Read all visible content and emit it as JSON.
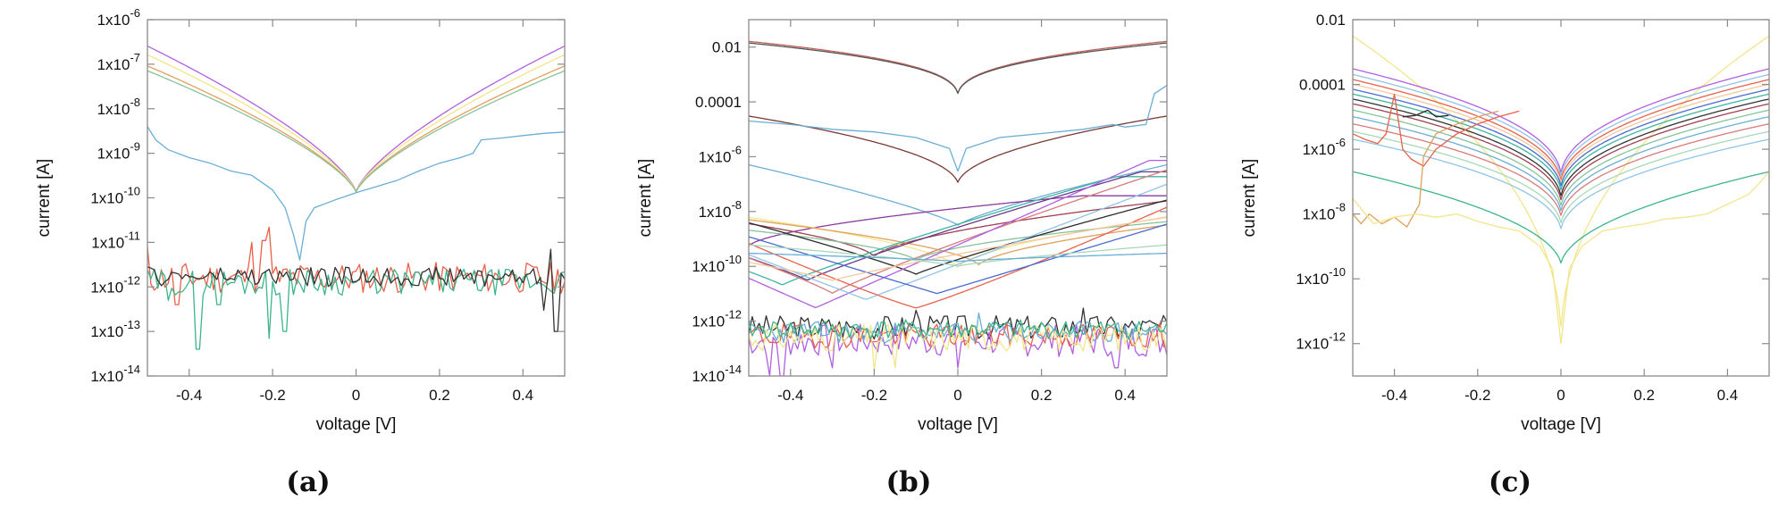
{
  "chart_data": [
    {
      "type": "line",
      "panel_label": "(a)",
      "xlabel": "voltage [V]",
      "ylabel": "current [A]",
      "xlim": [
        -0.5,
        0.5
      ],
      "ylim": [
        1e-14,
        1e-06
      ],
      "yscale": "log",
      "xticks": [
        -0.4,
        -0.2,
        0,
        0.2,
        0.4
      ],
      "xtick_labels": [
        "-0.4",
        "-0.2",
        "0",
        "0.2",
        "0.4"
      ],
      "yticks": [
        1e-14,
        1e-13,
        1e-12,
        1e-11,
        1e-10,
        1e-09,
        1e-08,
        1e-07,
        1e-06
      ],
      "ytick_labels": [
        {
          "base": "1x10",
          "exp": "-14"
        },
        {
          "base": "1x10",
          "exp": "-13"
        },
        {
          "base": "1x10",
          "exp": "-12"
        },
        {
          "base": "1x10",
          "exp": "-11"
        },
        {
          "base": "1x10",
          "exp": "-10"
        },
        {
          "base": "1x10",
          "exp": "-9"
        },
        {
          "base": "1x10",
          "exp": "-8"
        },
        {
          "base": "1x10",
          "exp": "-7"
        },
        {
          "base": "1x10",
          "exp": "-6"
        }
      ],
      "grid": false,
      "legend": "none",
      "series": [
        {
          "color": "#b05fe0",
          "kind": "v",
          "edge": 2.5e-07,
          "min": 1.2e-10,
          "p": 0.7
        },
        {
          "color": "#f2e58a",
          "kind": "v",
          "edge": 1.6e-07,
          "min": 1.2e-10,
          "p": 0.7
        },
        {
          "color": "#e0a05a",
          "kind": "v",
          "edge": 9e-08,
          "min": 1.2e-10,
          "p": 0.7
        },
        {
          "color": "#88c39a",
          "kind": "v",
          "edge": 7e-08,
          "min": 1.2e-10,
          "p": 0.7
        },
        {
          "color": "#6aaed6",
          "kind": "points",
          "x": [
            -0.5,
            -0.48,
            -0.45,
            -0.4,
            -0.35,
            -0.3,
            -0.25,
            -0.2,
            -0.17,
            -0.15,
            -0.135,
            -0.12,
            -0.1,
            -0.05,
            0,
            0.05,
            0.1,
            0.15,
            0.2,
            0.25,
            0.28,
            0.3,
            0.35,
            0.4,
            0.45,
            0.5
          ],
          "y": [
            4e-09,
            2e-09,
            1.2e-09,
            8e-10,
            6e-10,
            4e-10,
            3.2e-10,
            1.5e-10,
            6e-11,
            1.5e-11,
            4e-12,
            3e-11,
            6e-11,
            9e-11,
            1.3e-10,
            1.8e-10,
            2.5e-10,
            4e-10,
            6e-10,
            8e-10,
            1e-09,
            2e-09,
            2.2e-09,
            2.5e-09,
            2.8e-09,
            3e-09
          ]
        },
        {
          "color": "#e8604a",
          "kind": "noise",
          "level": 1.6e-12,
          "amp": 0.35,
          "seed": 11,
          "spikes": [
            [
              -0.5,
              8e-12
            ],
            [
              -0.25,
              1e-11
            ],
            [
              -0.22,
              1.1e-11
            ],
            [
              -0.43,
              4e-13
            ],
            [
              -0.21,
              2.2e-11
            ]
          ]
        },
        {
          "color": "#3bb58a",
          "kind": "noise",
          "level": 1.3e-12,
          "amp": 0.3,
          "seed": 29,
          "spikes": [
            [
              -0.38,
              4e-14
            ],
            [
              -0.21,
              7e-14
            ],
            [
              -0.17,
              1e-13
            ],
            [
              -0.45,
              5e-13
            ],
            [
              -0.33,
              4e-13
            ]
          ]
        },
        {
          "color": "#333333",
          "kind": "noise",
          "level": 1.7e-12,
          "amp": 0.22,
          "seed": 47,
          "spikes": [
            [
              0.47,
              7e-12
            ],
            [
              0.48,
              1e-13
            ],
            [
              0.45,
              3e-13
            ]
          ]
        }
      ]
    },
    {
      "type": "line",
      "panel_label": "(b)",
      "xlabel": "voltage [V]",
      "ylabel": "current [A]",
      "xlim": [
        -0.5,
        0.5
      ],
      "ylim": [
        1e-14,
        0.1
      ],
      "yscale": "log",
      "xticks": [
        -0.4,
        -0.2,
        0,
        0.2,
        0.4
      ],
      "xtick_labels": [
        "-0.4",
        "-0.2",
        "0",
        "0.2",
        "0.4"
      ],
      "yticks": [
        1e-14,
        1e-12,
        1e-10,
        1e-08,
        1e-06,
        0.0001,
        0.01
      ],
      "ytick_labels": [
        {
          "base": "1x10",
          "exp": "-14"
        },
        {
          "base": "1x10",
          "exp": "-12"
        },
        {
          "base": "1x10",
          "exp": "-10"
        },
        {
          "base": "1x10",
          "exp": "-8"
        },
        {
          "base": "1x10",
          "exp": "-6"
        },
        {
          "base": "0.0001",
          "exp": ""
        },
        {
          "base": "0.01",
          "exp": ""
        }
      ],
      "grid": false,
      "legend": "none",
      "series": [
        {
          "color": "#c0605a",
          "kind": "v",
          "edge": 0.016,
          "min": 0.0001,
          "p": 0.35
        },
        {
          "color": "#555555",
          "kind": "v",
          "edge": 0.014,
          "min": 0.0001,
          "p": 0.35
        },
        {
          "color": "#7a3a34",
          "kind": "v",
          "edge": 3e-05,
          "min": 8e-08,
          "p": 0.5
        },
        {
          "color": "#6aaed6",
          "kind": "points",
          "x": [
            -0.5,
            -0.4,
            -0.3,
            -0.2,
            -0.1,
            -0.02,
            0,
            0.02,
            0.1,
            0.2,
            0.3,
            0.37,
            0.4,
            0.45,
            0.47,
            0.5
          ],
          "y": [
            2e-05,
            1.5e-05,
            1e-05,
            8e-06,
            5e-06,
            2e-06,
            3e-07,
            2e-06,
            5e-06,
            7e-06,
            1e-05,
            1.5e-05,
            1.2e-05,
            1.5e-05,
            0.0002,
            0.0004
          ]
        },
        {
          "color": "#6aaed6",
          "kind": "v",
          "edge": 5e-07,
          "min": 3e-09,
          "p": 0.8
        },
        {
          "color": "#8a3aa0",
          "kind": "v",
          "edge": 1.3e-08,
          "min": 5e-10,
          "p": 0.6,
          "shift": -0.5
        },
        {
          "color": "#a04050",
          "kind": "v",
          "edge": 1e-08,
          "min": 2e-10,
          "p": 0.6,
          "shift": -0.2
        },
        {
          "color": "#f2e58a",
          "kind": "v",
          "edge": 6e-09,
          "min": 8e-11,
          "p": 0.6
        },
        {
          "color": "#e0a05a",
          "kind": "v",
          "edge": 4e-09,
          "min": 1e-10,
          "p": 0.6,
          "shift": 0.05
        },
        {
          "color": "#88c39a",
          "kind": "v",
          "edge": 3e-09,
          "min": 1.5e-10,
          "p": 0.6,
          "shift": -0.1
        },
        {
          "color": "#3bb5a0",
          "kind": "v",
          "edge": 8e-09,
          "min": 2e-11,
          "p": 0.9,
          "shift": -0.42
        },
        {
          "color": "#6a3a8a",
          "kind": "v",
          "edge": 1.2e-08,
          "min": 3e-11,
          "p": 0.9,
          "shift": -0.36
        },
        {
          "color": "#2a2a2a",
          "kind": "v",
          "edge": 1e-08,
          "min": 5e-11,
          "p": 0.9,
          "shift": -0.1
        },
        {
          "color": "#d77a7a",
          "kind": "v",
          "edge": 9e-09,
          "min": 1e-11,
          "p": 0.9,
          "shift": -0.3
        },
        {
          "color": "#b05fe0",
          "kind": "v",
          "edge": 7e-09,
          "min": 3e-12,
          "p": 1.0,
          "shift": -0.34
        },
        {
          "color": "#8fc4e8",
          "kind": "v",
          "edge": 5e-09,
          "min": 6e-12,
          "p": 1.0,
          "shift": -0.22
        },
        {
          "color": "#e8604a",
          "kind": "v",
          "edge": 3e-09,
          "min": 3e-12,
          "p": 1.1,
          "shift": -0.1
        },
        {
          "color": "#4a6ad0",
          "kind": "v",
          "edge": 2e-09,
          "min": 1e-11,
          "p": 1.0,
          "shift": -0.05
        },
        {
          "color": "#f2c9a0",
          "kind": "v",
          "edge": 1e-09,
          "min": 3e-11,
          "p": 0.9,
          "shift": -0.3
        },
        {
          "color": "#a8d8b8",
          "kind": "v",
          "edge": 6e-10,
          "min": 1e-10,
          "p": 0.8,
          "shift": 0.0
        },
        {
          "color": "#6aaed6",
          "kind": "v",
          "edge": 3e-10,
          "min": 1.5e-10,
          "p": 0.8,
          "shift": 0.0
        },
        {
          "color": "#333333",
          "kind": "noise",
          "level": 6e-13,
          "amp": 0.45,
          "seed": 3,
          "spikes": [
            [
              0.3,
              3e-12
            ],
            [
              -0.1,
              2.5e-12
            ]
          ]
        },
        {
          "color": "#b05fe0",
          "kind": "noise",
          "level": 2e-13,
          "amp": 0.6,
          "seed": 7,
          "spikes": [
            [
              -0.45,
              1e-14
            ],
            [
              -0.42,
              1e-14
            ],
            [
              -0.3,
              2e-14
            ],
            [
              0.0,
              2e-14
            ],
            [
              0.38,
              2e-14
            ]
          ]
        },
        {
          "color": "#e8604a",
          "kind": "noise",
          "level": 3e-13,
          "amp": 0.45,
          "seed": 19,
          "spikes": []
        },
        {
          "color": "#6aaed6",
          "kind": "noise",
          "level": 4e-13,
          "amp": 0.4,
          "seed": 23,
          "spikes": [
            [
              0.05,
              2e-12
            ]
          ]
        },
        {
          "color": "#f2e58a",
          "kind": "noise",
          "level": 2.5e-13,
          "amp": 0.5,
          "seed": 31,
          "spikes": [
            [
              -0.2,
              1.5e-14
            ],
            [
              -0.15,
              2e-14
            ]
          ]
        },
        {
          "color": "#3bb58a",
          "kind": "noise",
          "level": 5e-13,
          "amp": 0.35,
          "seed": 41,
          "spikes": []
        }
      ]
    },
    {
      "type": "line",
      "panel_label": "(c)",
      "xlabel": "voltage [V]",
      "ylabel": "current [A]",
      "xlim": [
        -0.5,
        0.5
      ],
      "ylim": [
        1e-13,
        0.01
      ],
      "yscale": "log",
      "xticks": [
        -0.4,
        -0.2,
        0,
        0.2,
        0.4
      ],
      "xtick_labels": [
        "-0.4",
        "-0.2",
        "0",
        "0.2",
        "0.4"
      ],
      "yticks": [
        1e-12,
        1e-10,
        1e-08,
        1e-06,
        0.0001,
        0.01
      ],
      "ytick_labels": [
        {
          "base": "1x10",
          "exp": "-12"
        },
        {
          "base": "1x10",
          "exp": "-10"
        },
        {
          "base": "1x10",
          "exp": "-8"
        },
        {
          "base": "1x10",
          "exp": "-6"
        },
        {
          "base": "0.0001",
          "exp": ""
        },
        {
          "base": "0.01",
          "exp": ""
        }
      ],
      "grid": false,
      "legend": "none",
      "series": [
        {
          "color": "#f2e58a",
          "kind": "v",
          "edge": 0.003,
          "min": 5e-13,
          "p": 0.45
        },
        {
          "color": "#b05fe0",
          "kind": "v",
          "edge": 0.0003,
          "min": 1e-07,
          "p": 0.45
        },
        {
          "color": "#8fc4e8",
          "kind": "v",
          "edge": 0.0002,
          "min": 8e-08,
          "p": 0.45
        },
        {
          "color": "#e8604a",
          "kind": "v",
          "edge": 0.00014,
          "min": 6e-08,
          "p": 0.45
        },
        {
          "color": "#f2c9a0",
          "kind": "v",
          "edge": 0.0001,
          "min": 5e-08,
          "p": 0.45
        },
        {
          "color": "#4a6ad0",
          "kind": "v",
          "edge": 7e-05,
          "min": 4e-08,
          "p": 0.45
        },
        {
          "color": "#3bb5a0",
          "kind": "v",
          "edge": 5e-05,
          "min": 3e-08,
          "p": 0.45
        },
        {
          "color": "#333333",
          "kind": "v",
          "edge": 3.5e-05,
          "min": 2e-08,
          "p": 0.45
        },
        {
          "color": "#a04050",
          "kind": "v",
          "edge": 2.5e-05,
          "min": 1.5e-08,
          "p": 0.45
        },
        {
          "color": "#88c39a",
          "kind": "v",
          "edge": 1.6e-05,
          "min": 1e-08,
          "p": 0.45
        },
        {
          "color": "#6aaed6",
          "kind": "v",
          "edge": 1e-05,
          "min": 7e-09,
          "p": 0.45
        },
        {
          "color": "#d77a7a",
          "kind": "v",
          "edge": 6e-06,
          "min": 5e-09,
          "p": 0.45
        },
        {
          "color": "#a8d8b8",
          "kind": "v",
          "edge": 3.5e-06,
          "min": 3e-09,
          "p": 0.45
        },
        {
          "color": "#8fc4e8",
          "kind": "v",
          "edge": 2e-06,
          "min": 2e-09,
          "p": 0.45
        },
        {
          "color": "#3bb58a",
          "kind": "v",
          "edge": 2e-07,
          "min": 2e-10,
          "p": 0.5
        },
        {
          "color": "#e8604a",
          "kind": "points",
          "x": [
            -0.5,
            -0.47,
            -0.44,
            -0.42,
            -0.4,
            -0.38,
            -0.36,
            -0.33,
            -0.3,
            -0.25,
            -0.2,
            -0.15,
            -0.1
          ],
          "y": [
            3e-06,
            2e-06,
            1.5e-06,
            3e-06,
            5e-05,
            1e-06,
            5e-07,
            3e-07,
            1e-06,
            3e-06,
            6e-06,
            1e-05,
            1.5e-05
          ]
        },
        {
          "color": "#e0a05a",
          "kind": "points",
          "x": [
            -0.5,
            -0.48,
            -0.46,
            -0.43,
            -0.4,
            -0.37,
            -0.34,
            -0.33,
            -0.3,
            -0.25,
            -0.2,
            -0.15
          ],
          "y": [
            1e-08,
            5e-09,
            1e-08,
            5e-09,
            8e-09,
            4e-09,
            2e-08,
            6e-07,
            3e-06,
            6e-06,
            1e-05,
            1.5e-05
          ]
        },
        {
          "color": "#f2e58a",
          "kind": "points",
          "x": [
            -0.5,
            -0.45,
            -0.4,
            -0.35,
            -0.3,
            -0.25,
            -0.2,
            -0.15,
            -0.1,
            -0.05,
            -0.02,
            0,
            0.02,
            0.05,
            0.1,
            0.15,
            0.2,
            0.25,
            0.3,
            0.35,
            0.4,
            0.45,
            0.48,
            0.5
          ],
          "y": [
            3e-08,
            5e-09,
            8e-09,
            1e-08,
            8e-09,
            1e-08,
            6e-09,
            4e-09,
            3e-09,
            1e-09,
            2e-10,
            1e-12,
            2e-10,
            1e-09,
            3e-09,
            4e-09,
            5e-09,
            7e-09,
            8e-09,
            1e-08,
            2e-08,
            4e-08,
            1e-07,
            2e-07
          ]
        },
        {
          "color": "#2a2a2a",
          "kind": "points",
          "x": [
            -0.38,
            -0.35,
            -0.32,
            -0.3,
            -0.27
          ],
          "y": [
            1e-05,
            1.1e-05,
            1.6e-05,
            1e-05,
            1.1e-05
          ]
        }
      ]
    }
  ]
}
